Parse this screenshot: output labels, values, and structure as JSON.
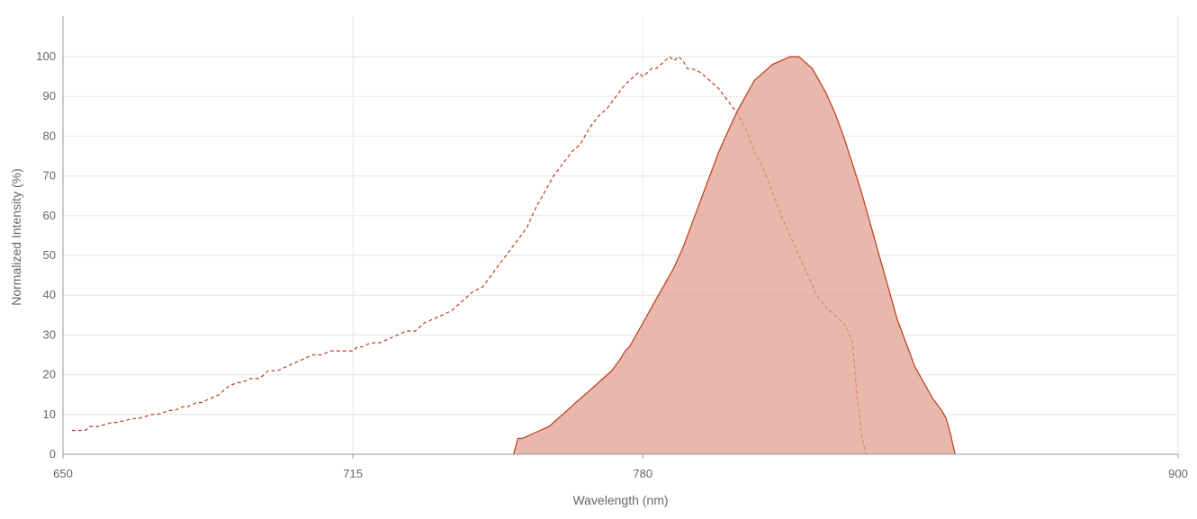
{
  "chart_data": {
    "type": "area",
    "title": "",
    "xlabel": "Wavelength (nm)",
    "ylabel": "Normalized Intensity (%)",
    "xlim": [
      650,
      900
    ],
    "ylim": [
      0,
      110
    ],
    "x_ticks": [
      650,
      715,
      780,
      900
    ],
    "y_ticks": [
      0,
      10,
      20,
      30,
      40,
      50,
      60,
      70,
      80,
      90,
      100
    ],
    "grid": true,
    "legend": "none",
    "colors": {
      "line": "#c0391b",
      "fill": "#e0a090",
      "grid": "#e6e6e6",
      "axis": "#999999",
      "text": "#666666"
    },
    "series": [
      {
        "style": "dashed",
        "x": [
          652,
          655,
          656,
          658,
          661,
          662,
          666,
          667,
          670,
          671,
          674,
          675,
          677,
          678,
          680,
          681,
          683,
          685,
          687,
          689,
          690,
          692,
          694,
          696,
          698,
          700,
          702,
          704,
          706,
          708,
          710,
          712,
          714,
          715,
          716,
          717,
          719,
          721,
          723,
          725,
          727,
          729,
          731,
          733,
          735,
          737,
          739,
          741,
          742,
          744,
          746,
          748,
          750,
          752,
          754,
          756,
          758,
          760,
          762,
          764,
          766,
          768,
          770,
          772,
          774,
          776,
          778,
          779,
          780,
          781,
          782,
          783,
          784,
          785,
          786,
          787,
          788,
          789,
          790,
          791,
          793,
          795,
          797,
          799,
          801,
          803,
          805,
          807,
          809,
          811,
          813,
          815,
          817,
          819,
          821,
          823,
          825,
          826,
          827,
          828,
          829,
          830
        ],
        "y": [
          6,
          6,
          7,
          7,
          8,
          8,
          9,
          9,
          10,
          10,
          11,
          11,
          12,
          12,
          13,
          13,
          14,
          15,
          17,
          18,
          18,
          19,
          19,
          21,
          21,
          22,
          23,
          24,
          25,
          25,
          26,
          26,
          26,
          26,
          27,
          27,
          28,
          28,
          29,
          30,
          31,
          31,
          33,
          34,
          35,
          36,
          38,
          40,
          41,
          42,
          45,
          48,
          51,
          54,
          57,
          62,
          66,
          70,
          73,
          76,
          78,
          82,
          85,
          87,
          90,
          93,
          95,
          96,
          95,
          96,
          97,
          97,
          98,
          99,
          100,
          99,
          100,
          99,
          97,
          97,
          96,
          94,
          92,
          89,
          86,
          82,
          76,
          72,
          66,
          60,
          55,
          50,
          45,
          40,
          37,
          35,
          33,
          31,
          28,
          15,
          5,
          0
        ]
      },
      {
        "style": "filled",
        "x": [
          751,
          752,
          753,
          755,
          757,
          759,
          761,
          763,
          765,
          767,
          769,
          770,
          771,
          773,
          775,
          776,
          777,
          779,
          781,
          783,
          785,
          787,
          789,
          791,
          793,
          795,
          797,
          799,
          801,
          803,
          805,
          807,
          809,
          811,
          813,
          815,
          816,
          817,
          818,
          819,
          820,
          821,
          823,
          825,
          827,
          829,
          831,
          833,
          835,
          837,
          839,
          841,
          843,
          845,
          847,
          848,
          849,
          850
        ],
        "y": [
          0,
          4,
          4,
          5,
          6,
          7,
          9,
          11,
          13,
          15,
          17,
          18,
          19,
          21,
          24,
          26,
          27,
          31,
          35,
          39,
          43,
          47,
          52,
          58,
          64,
          70,
          76,
          81,
          86,
          90,
          94,
          96,
          98,
          99,
          100,
          100,
          99,
          98,
          97,
          95,
          93,
          91,
          86,
          80,
          73,
          66,
          58,
          50,
          42,
          34,
          28,
          22,
          18,
          14,
          11,
          9,
          5,
          0
        ]
      }
    ]
  }
}
